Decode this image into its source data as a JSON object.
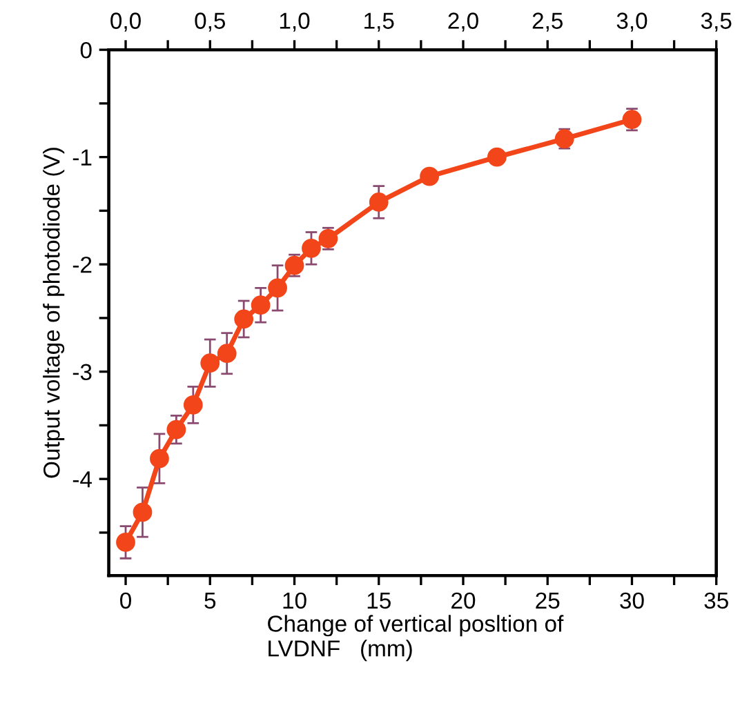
{
  "chart_data": {
    "type": "line",
    "xlabel": "Change of vertical posltion of\nLVDNF   (mm)",
    "ylabel": "Output voltage of photodiode (V)",
    "x": [
      0,
      1,
      2,
      3,
      4,
      5,
      6,
      7,
      8,
      9,
      10,
      11,
      12,
      15,
      18,
      22,
      26,
      30
    ],
    "series": [
      {
        "color": "#f2461a",
        "values": [
          -4.59,
          -4.31,
          -3.81,
          -3.54,
          -3.31,
          -2.92,
          -2.83,
          -2.51,
          -2.38,
          -2.22,
          -2.01,
          -1.85,
          -1.76,
          -1.42,
          -1.18,
          -1.0,
          -0.83,
          -0.65
        ],
        "errors": [
          0.15,
          0.23,
          0.23,
          0.13,
          0.17,
          0.22,
          0.19,
          0.17,
          0.16,
          0.21,
          0.1,
          0.15,
          0.1,
          0.15,
          null,
          null,
          0.09,
          0.1
        ]
      }
    ],
    "marker": "circle",
    "line_style": "solid",
    "grid": false,
    "xlim": [
      -1,
      35
    ],
    "xticks": [
      0,
      {
        "value": 2.5,
        "label": null
      },
      5,
      {
        "value": 7.5,
        "label": null
      },
      10,
      {
        "value": 12.5,
        "label": null
      },
      15,
      {
        "value": 17.5,
        "label": null
      },
      20,
      {
        "value": 22.5,
        "label": null
      },
      25,
      {
        "value": 27.5,
        "label": null
      },
      30,
      {
        "value": 32.5,
        "label": null
      },
      35
    ],
    "x2lim": [
      -0.1,
      3.5
    ],
    "x2ticks": [
      {
        "value": 0,
        "label": "0,0"
      },
      {
        "value": 0.25,
        "label": null
      },
      {
        "value": 0.5,
        "label": "0,5"
      },
      {
        "value": 0.75,
        "label": null
      },
      {
        "value": 1.0,
        "label": "1,0"
      },
      {
        "value": 1.25,
        "label": null
      },
      {
        "value": 1.5,
        "label": "1,5"
      },
      {
        "value": 1.75,
        "label": null
      },
      {
        "value": 2.0,
        "label": "2,0"
      },
      {
        "value": 2.25,
        "label": null
      },
      {
        "value": 2.5,
        "label": "2,5"
      },
      {
        "value": 2.75,
        "label": null
      },
      {
        "value": 3.0,
        "label": "3,0"
      },
      {
        "value": 3.25,
        "label": null
      },
      {
        "value": 3.5,
        "label": "3,5"
      }
    ],
    "ylim": [
      -4.9,
      0
    ],
    "yticks": [
      0,
      {
        "value": -0.5,
        "label": null
      },
      -1,
      {
        "value": -1.5,
        "label": null
      },
      -2,
      {
        "value": -2.5,
        "label": null
      },
      -3,
      {
        "value": -3.5,
        "label": null
      },
      -4,
      {
        "value": -4.5,
        "label": null
      }
    ]
  }
}
